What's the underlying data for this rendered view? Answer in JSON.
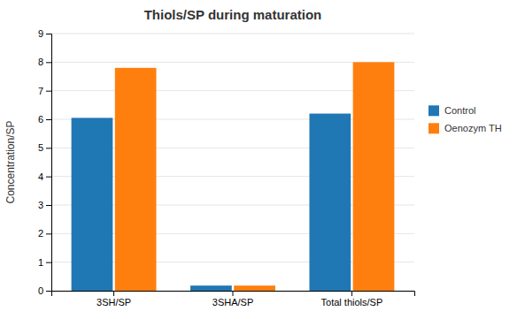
{
  "chart_data": {
    "type": "bar",
    "title": "Thiols/SP during maturation",
    "categories": [
      "3SH/SP",
      "3SHA/SP",
      "Total thiols/SP"
    ],
    "series": [
      {
        "name": "Control",
        "values": [
          6.05,
          0.18,
          6.2
        ]
      },
      {
        "name": "Oenozym TH",
        "values": [
          7.8,
          0.18,
          8.0
        ]
      }
    ],
    "ylabel": "Concentration/SP",
    "ylim": [
      0,
      9
    ],
    "yticks": [
      0,
      1,
      2,
      3,
      4,
      5,
      6,
      7,
      8,
      9
    ],
    "grid": true,
    "legend": "right"
  }
}
